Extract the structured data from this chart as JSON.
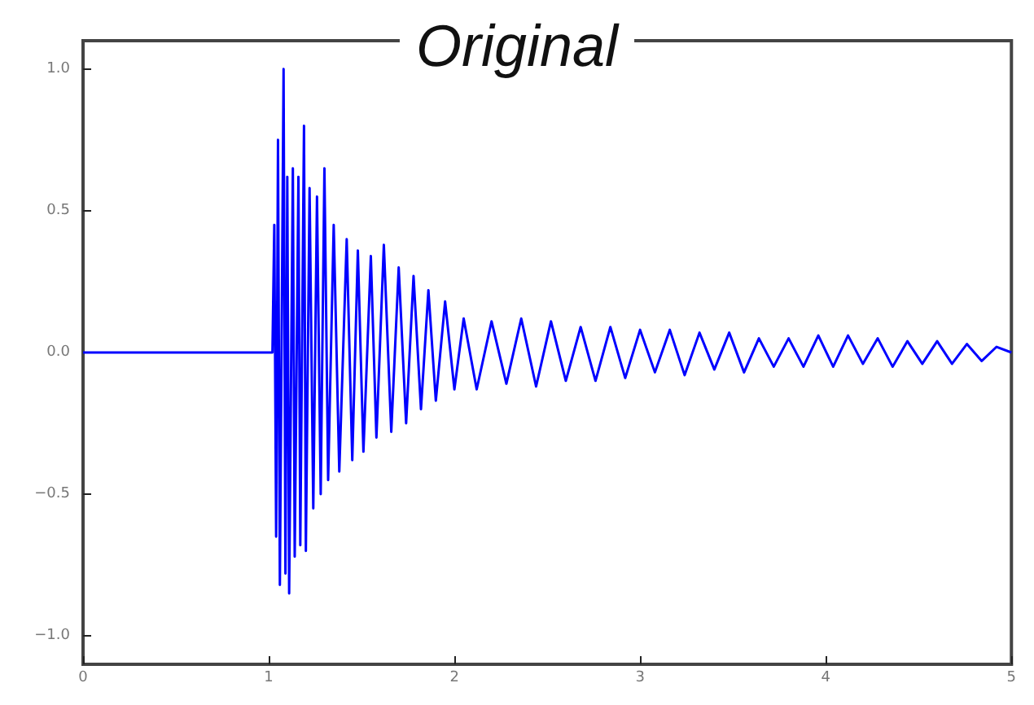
{
  "chart_data": {
    "type": "line",
    "title": "Original",
    "x": [
      0,
      1.02,
      1.03,
      1.04,
      1.05,
      1.06,
      1.08,
      1.09,
      1.1,
      1.11,
      1.13,
      1.14,
      1.16,
      1.17,
      1.19,
      1.2,
      1.22,
      1.24,
      1.26,
      1.28,
      1.3,
      1.32,
      1.35,
      1.38,
      1.42,
      1.45,
      1.48,
      1.51,
      1.55,
      1.58,
      1.62,
      1.66,
      1.7,
      1.74,
      1.78,
      1.82,
      1.86,
      1.9,
      1.95,
      2.0,
      2.05,
      2.12,
      2.2,
      2.28,
      2.36,
      2.44,
      2.52,
      2.6,
      2.68,
      2.76,
      2.84,
      2.92,
      3.0,
      3.08,
      3.16,
      3.24,
      3.32,
      3.4,
      3.48,
      3.56,
      3.64,
      3.72,
      3.8,
      3.88,
      3.96,
      4.04,
      4.12,
      4.2,
      4.28,
      4.36,
      4.44,
      4.52,
      4.6,
      4.68,
      4.76,
      4.84,
      4.92,
      5.0
    ],
    "series": [
      {
        "color": "#0000ff",
        "values": [
          0,
          0,
          0.45,
          -0.65,
          0.75,
          -0.82,
          1.0,
          -0.78,
          0.62,
          -0.85,
          0.65,
          -0.72,
          0.62,
          -0.68,
          0.8,
          -0.7,
          0.58,
          -0.55,
          0.55,
          -0.5,
          0.65,
          -0.45,
          0.45,
          -0.42,
          0.4,
          -0.38,
          0.36,
          -0.35,
          0.34,
          -0.3,
          0.38,
          -0.28,
          0.3,
          -0.25,
          0.27,
          -0.2,
          0.22,
          -0.17,
          0.18,
          -0.13,
          0.12,
          -0.13,
          0.11,
          -0.11,
          0.12,
          -0.12,
          0.11,
          -0.1,
          0.09,
          -0.1,
          0.09,
          -0.09,
          0.08,
          -0.07,
          0.08,
          -0.08,
          0.07,
          -0.06,
          0.07,
          -0.07,
          0.05,
          -0.05,
          0.05,
          -0.05,
          0.06,
          -0.05,
          0.06,
          -0.04,
          0.05,
          -0.05,
          0.04,
          -0.04,
          0.04,
          -0.04,
          0.03,
          -0.03,
          0.02,
          0
        ]
      }
    ],
    "xlim": [
      0,
      5
    ],
    "xticks": [
      0,
      1,
      2,
      3,
      4,
      5
    ],
    "ylim": [
      -1.1,
      1.1
    ],
    "yticks": [
      {
        "value": -1,
        "label": "−1.0"
      },
      {
        "value": -0.5,
        "label": "−0.5"
      },
      {
        "value": 0,
        "label": "0.0"
      },
      {
        "value": 0.5,
        "label": "0.5"
      },
      {
        "value": 1,
        "label": "1.0"
      }
    ],
    "marker": "none",
    "line_style": "solid",
    "grid": false
  }
}
